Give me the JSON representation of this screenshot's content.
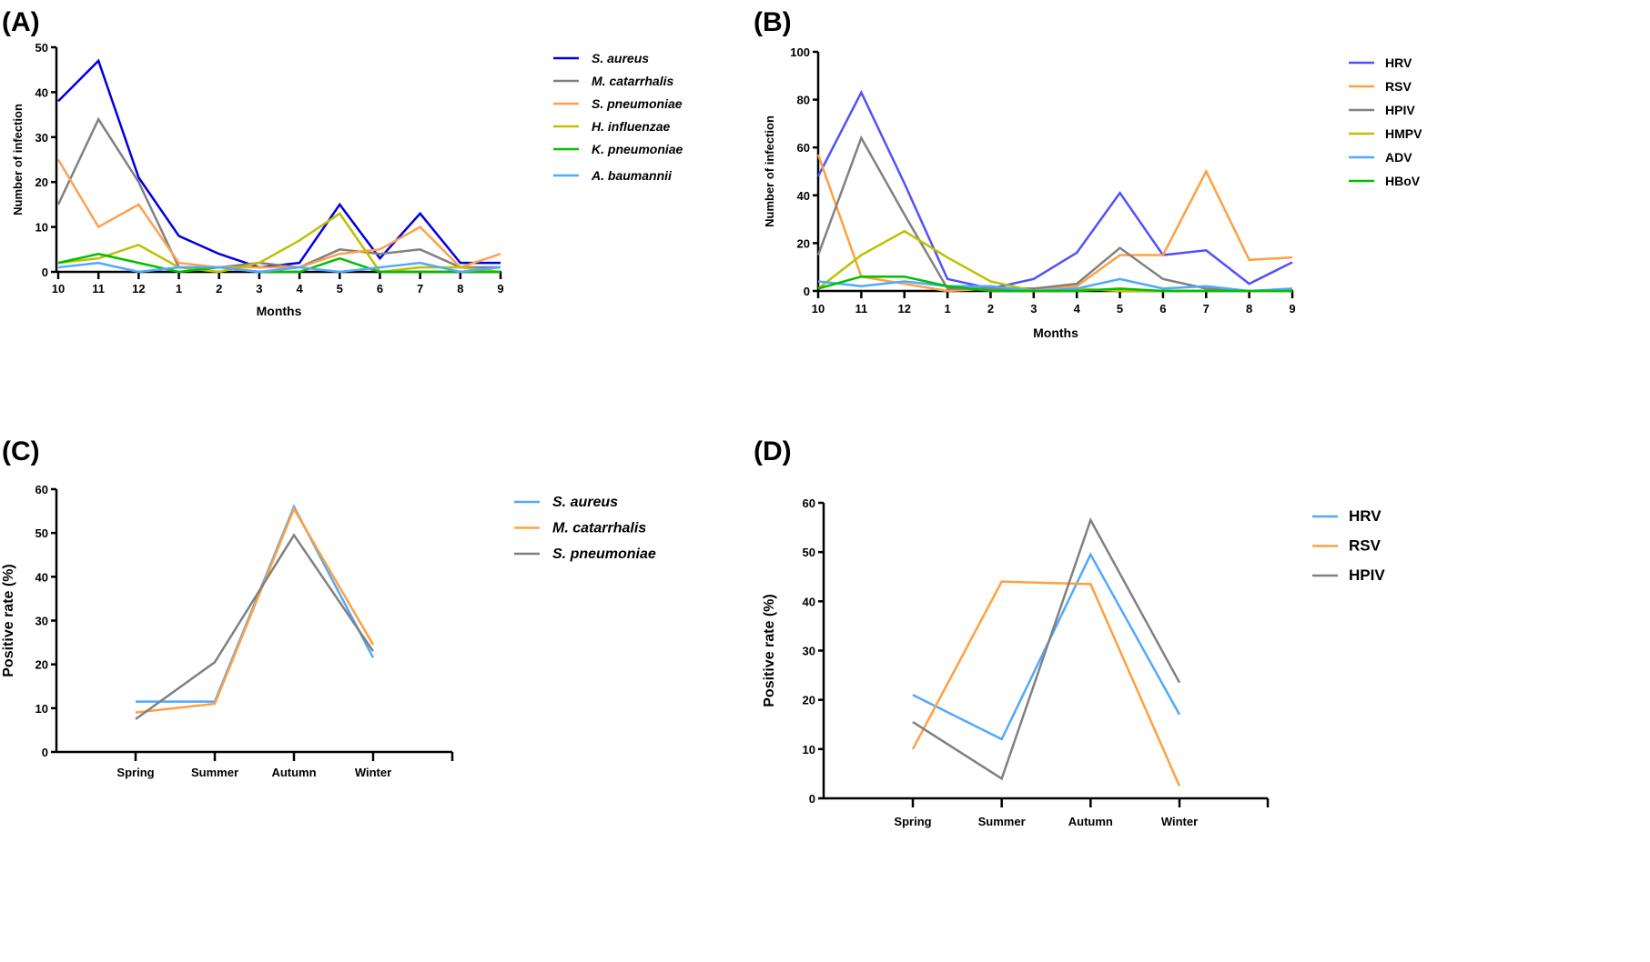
{
  "chart_data": [
    {
      "panel": "(A)",
      "type": "line",
      "xlabel": "Months",
      "ylabel": "Number of infection",
      "ylim": [
        0,
        50
      ],
      "yticks": [
        0,
        10,
        20,
        30,
        40,
        50
      ],
      "categories": [
        "10",
        "11",
        "12",
        "1",
        "2",
        "3",
        "4",
        "5",
        "6",
        "7",
        "8",
        "9"
      ],
      "legend": "right",
      "legend_italic": true,
      "series": [
        {
          "name": "S. aureus",
          "color": "#0000e0",
          "values": [
            38,
            47,
            21,
            8,
            4,
            1,
            2,
            15,
            3,
            13,
            2,
            2
          ]
        },
        {
          "name": "M. catarrhalis",
          "color": "#808080",
          "values": [
            15,
            34,
            20,
            1,
            1,
            2,
            1,
            5,
            4,
            5,
            1,
            1
          ]
        },
        {
          "name": "S. pneumoniae",
          "color": "#ffa050",
          "values": [
            25,
            10,
            15,
            2,
            1,
            1,
            1,
            4,
            5,
            10,
            1,
            4
          ]
        },
        {
          "name": "H. influenzae",
          "color": "#c0c000",
          "values": [
            2,
            3,
            6,
            1,
            0,
            2,
            7,
            13,
            0,
            1,
            1,
            0
          ]
        },
        {
          "name": "K. pneumoniae",
          "color": "#00c000",
          "values": [
            2,
            4,
            2,
            0,
            1,
            0,
            0,
            3,
            0,
            0,
            0,
            0
          ]
        },
        {
          "name": "A. baumannii",
          "color": "#50a8ff",
          "values": [
            1,
            2,
            0,
            1,
            1,
            0,
            1,
            0,
            1,
            2,
            0,
            1
          ]
        }
      ]
    },
    {
      "panel": "(B)",
      "type": "line",
      "xlabel": "Months",
      "ylabel": "Number of infection",
      "ylim": [
        0,
        100
      ],
      "yticks": [
        0,
        20,
        40,
        60,
        80,
        100
      ],
      "categories": [
        "10",
        "11",
        "12",
        "1",
        "2",
        "3",
        "4",
        "5",
        "6",
        "7",
        "8",
        "9"
      ],
      "legend": "right",
      "legend_italic": false,
      "series": [
        {
          "name": "HRV",
          "color": "#5050ff",
          "values": [
            48,
            83,
            45,
            5,
            1,
            5,
            16,
            41,
            15,
            17,
            3,
            12
          ]
        },
        {
          "name": "RSV",
          "color": "#ffa040",
          "values": [
            57,
            6,
            3,
            0,
            1,
            1,
            2,
            15,
            15,
            50,
            13,
            14
          ]
        },
        {
          "name": "HPIV",
          "color": "#808080",
          "values": [
            15,
            64,
            32,
            1,
            1,
            1,
            3,
            18,
            5,
            1,
            0,
            0
          ]
        },
        {
          "name": "HMPV",
          "color": "#c0c000",
          "values": [
            1,
            15,
            25,
            14,
            4,
            0,
            1,
            0,
            0,
            0,
            0,
            0
          ]
        },
        {
          "name": "ADV",
          "color": "#50a8ff",
          "values": [
            4,
            2,
            4,
            2,
            2,
            0,
            1,
            5,
            1,
            2,
            0,
            1
          ]
        },
        {
          "name": "HBoV",
          "color": "#00c000",
          "values": [
            1,
            6,
            6,
            2,
            0,
            0,
            0,
            1,
            0,
            0,
            0,
            0
          ]
        }
      ]
    },
    {
      "panel": "(C)",
      "type": "line",
      "xlabel": "",
      "ylabel": "Positive rate (%)",
      "ylim": [
        0,
        60
      ],
      "yticks": [
        0,
        10,
        20,
        30,
        40,
        50,
        60
      ],
      "categories": [
        "Spring",
        "Summer",
        "Autumn",
        "Winter"
      ],
      "legend": "right",
      "legend_italic": true,
      "series": [
        {
          "name": "S. aureus",
          "color": "#50a8ff",
          "values": [
            11.5,
            11.5,
            56,
            21.5
          ]
        },
        {
          "name": "M. catarrhalis",
          "color": "#ffa040",
          "values": [
            9,
            11,
            55.5,
            24.5
          ]
        },
        {
          "name": "S. pneumoniae",
          "color": "#808080",
          "values": [
            7.5,
            20.5,
            49.5,
            23
          ]
        }
      ]
    },
    {
      "panel": "(D)",
      "type": "line",
      "xlabel": "",
      "ylabel": "Positive rate (%)",
      "ylim": [
        0,
        60
      ],
      "yticks": [
        0,
        10,
        20,
        30,
        40,
        50,
        60
      ],
      "categories": [
        "Spring",
        "Summer",
        "Autumn",
        "Winter"
      ],
      "legend": "right",
      "legend_italic": false,
      "series": [
        {
          "name": "HRV",
          "color": "#50a8ff",
          "values": [
            21,
            12,
            49.5,
            17
          ]
        },
        {
          "name": "RSV",
          "color": "#ffa040",
          "values": [
            10,
            44,
            43.5,
            2.5
          ]
        },
        {
          "name": "HPIV",
          "color": "#808080",
          "values": [
            15.5,
            4,
            56.5,
            23.5
          ]
        }
      ]
    }
  ]
}
